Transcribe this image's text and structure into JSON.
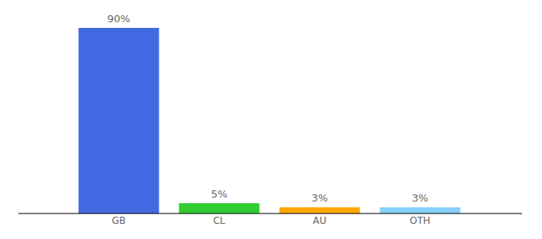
{
  "chart_data": {
    "type": "bar",
    "categories": [
      "GB",
      "CL",
      "AU",
      "OTH"
    ],
    "values": [
      90,
      5,
      3,
      3
    ],
    "value_labels": [
      "90%",
      "5%",
      "3%",
      "3%"
    ],
    "data_labels": true,
    "colors": [
      "#4169e1",
      "#32cd32",
      "#ffa500",
      "#87cefa"
    ],
    "ylim": [
      0,
      90
    ],
    "tick_labels": "x"
  }
}
